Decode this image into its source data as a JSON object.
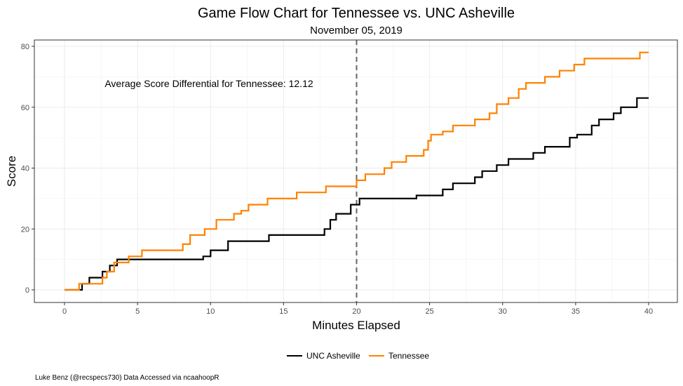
{
  "chart_data": {
    "type": "line",
    "title": "Game Flow Chart for Tennessee vs. UNC Asheville",
    "subtitle": "November 05, 2019",
    "xlabel": "Minutes Elapsed",
    "ylabel": "Score",
    "xlim": [
      0,
      40
    ],
    "ylim": [
      0,
      80
    ],
    "x_ticks": [
      0,
      5,
      10,
      15,
      20,
      25,
      30,
      35,
      40
    ],
    "y_ticks": [
      0,
      20,
      40,
      60,
      80
    ],
    "grid": true,
    "halftime_marker": 20,
    "annotation": "Average Score Differential for Tennessee: 12.12",
    "legend_position": "bottom",
    "caption": "Luke Benz (@recspecs730) Data Accessed via ncaahoopR",
    "series": [
      {
        "name": "UNC Asheville",
        "color": "#000000",
        "points": [
          [
            0,
            0
          ],
          [
            1.2,
            0
          ],
          [
            1.2,
            2
          ],
          [
            1.7,
            2
          ],
          [
            1.7,
            4
          ],
          [
            2.6,
            4
          ],
          [
            2.6,
            6
          ],
          [
            3.1,
            6
          ],
          [
            3.1,
            8
          ],
          [
            3.6,
            8
          ],
          [
            3.6,
            10
          ],
          [
            9.5,
            10
          ],
          [
            9.5,
            11
          ],
          [
            10,
            11
          ],
          [
            10,
            13
          ],
          [
            11.2,
            13
          ],
          [
            11.2,
            16
          ],
          [
            14,
            16
          ],
          [
            14,
            18
          ],
          [
            17.8,
            18
          ],
          [
            17.8,
            20
          ],
          [
            18.2,
            20
          ],
          [
            18.2,
            23
          ],
          [
            18.6,
            23
          ],
          [
            18.6,
            25
          ],
          [
            19.6,
            25
          ],
          [
            19.6,
            28
          ],
          [
            20.2,
            28
          ],
          [
            20.2,
            30
          ],
          [
            24.1,
            30
          ],
          [
            24.1,
            31
          ],
          [
            25.9,
            31
          ],
          [
            25.9,
            33
          ],
          [
            26.6,
            33
          ],
          [
            26.6,
            35
          ],
          [
            28.1,
            35
          ],
          [
            28.1,
            37
          ],
          [
            28.6,
            37
          ],
          [
            28.6,
            39
          ],
          [
            29.6,
            39
          ],
          [
            29.6,
            41
          ],
          [
            30.4,
            41
          ],
          [
            30.4,
            43
          ],
          [
            32.1,
            43
          ],
          [
            32.1,
            45
          ],
          [
            32.9,
            45
          ],
          [
            32.9,
            47
          ],
          [
            34.6,
            47
          ],
          [
            34.6,
            50
          ],
          [
            35.1,
            50
          ],
          [
            35.1,
            51
          ],
          [
            36.1,
            51
          ],
          [
            36.1,
            54
          ],
          [
            36.6,
            54
          ],
          [
            36.6,
            56
          ],
          [
            37.6,
            56
          ],
          [
            37.6,
            58
          ],
          [
            38.1,
            58
          ],
          [
            38.1,
            60
          ],
          [
            39.2,
            60
          ],
          [
            39.2,
            63
          ],
          [
            40,
            63
          ]
        ]
      },
      {
        "name": "Tennessee",
        "color": "#FF8200",
        "points": [
          [
            0,
            0
          ],
          [
            1,
            0
          ],
          [
            1,
            2
          ],
          [
            2.6,
            2
          ],
          [
            2.6,
            4
          ],
          [
            2.9,
            4
          ],
          [
            2.9,
            6
          ],
          [
            3.4,
            6
          ],
          [
            3.4,
            9
          ],
          [
            4.4,
            9
          ],
          [
            4.4,
            11
          ],
          [
            5.3,
            11
          ],
          [
            5.3,
            13
          ],
          [
            8.1,
            13
          ],
          [
            8.1,
            15
          ],
          [
            8.6,
            15
          ],
          [
            8.6,
            18
          ],
          [
            9.6,
            18
          ],
          [
            9.6,
            20
          ],
          [
            10.4,
            20
          ],
          [
            10.4,
            23
          ],
          [
            11.6,
            23
          ],
          [
            11.6,
            25
          ],
          [
            12.1,
            25
          ],
          [
            12.1,
            26
          ],
          [
            12.6,
            26
          ],
          [
            12.6,
            28
          ],
          [
            13.9,
            28
          ],
          [
            13.9,
            30
          ],
          [
            15.9,
            30
          ],
          [
            15.9,
            32
          ],
          [
            17.9,
            32
          ],
          [
            17.9,
            34
          ],
          [
            20,
            34
          ],
          [
            20,
            36
          ],
          [
            20.6,
            36
          ],
          [
            20.6,
            38
          ],
          [
            21.9,
            38
          ],
          [
            21.9,
            40
          ],
          [
            22.4,
            40
          ],
          [
            22.4,
            42
          ],
          [
            23.4,
            42
          ],
          [
            23.4,
            44
          ],
          [
            24.6,
            44
          ],
          [
            24.6,
            46
          ],
          [
            24.9,
            46
          ],
          [
            24.9,
            49
          ],
          [
            25.1,
            49
          ],
          [
            25.1,
            51
          ],
          [
            25.9,
            51
          ],
          [
            25.9,
            52
          ],
          [
            26.6,
            52
          ],
          [
            26.6,
            54
          ],
          [
            28.1,
            54
          ],
          [
            28.1,
            56
          ],
          [
            29.1,
            56
          ],
          [
            29.1,
            58
          ],
          [
            29.6,
            58
          ],
          [
            29.6,
            61
          ],
          [
            30.4,
            61
          ],
          [
            30.4,
            63
          ],
          [
            31.1,
            63
          ],
          [
            31.1,
            66
          ],
          [
            31.6,
            66
          ],
          [
            31.6,
            68
          ],
          [
            32.9,
            68
          ],
          [
            32.9,
            70
          ],
          [
            33.9,
            70
          ],
          [
            33.9,
            72
          ],
          [
            34.9,
            72
          ],
          [
            34.9,
            74
          ],
          [
            35.6,
            74
          ],
          [
            35.6,
            76
          ],
          [
            39.4,
            76
          ],
          [
            39.4,
            78
          ],
          [
            40,
            78
          ]
        ]
      }
    ]
  }
}
